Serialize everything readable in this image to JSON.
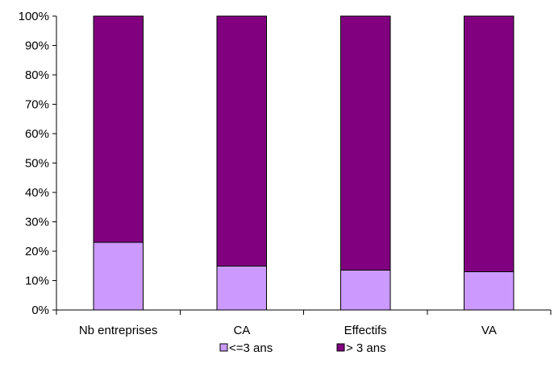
{
  "chart_data": {
    "type": "bar",
    "stacked": true,
    "categories": [
      "Nb entreprises",
      "CA",
      "Effectifs",
      "VA"
    ],
    "series": [
      {
        "name": "<=3 ans",
        "values": [
          23,
          15,
          13.5,
          13
        ],
        "color": "#CC99FF"
      },
      {
        "name": "> 3 ans",
        "values": [
          77,
          85,
          86.5,
          87
        ],
        "color": "#800080"
      }
    ],
    "y_ticks": [
      "0%",
      "10%",
      "20%",
      "30%",
      "40%",
      "50%",
      "60%",
      "70%",
      "80%",
      "90%",
      "100%"
    ],
    "ylim": [
      0,
      100
    ],
    "grid": false,
    "legend": "bottom",
    "title": "",
    "xlabel": "",
    "ylabel": ""
  }
}
